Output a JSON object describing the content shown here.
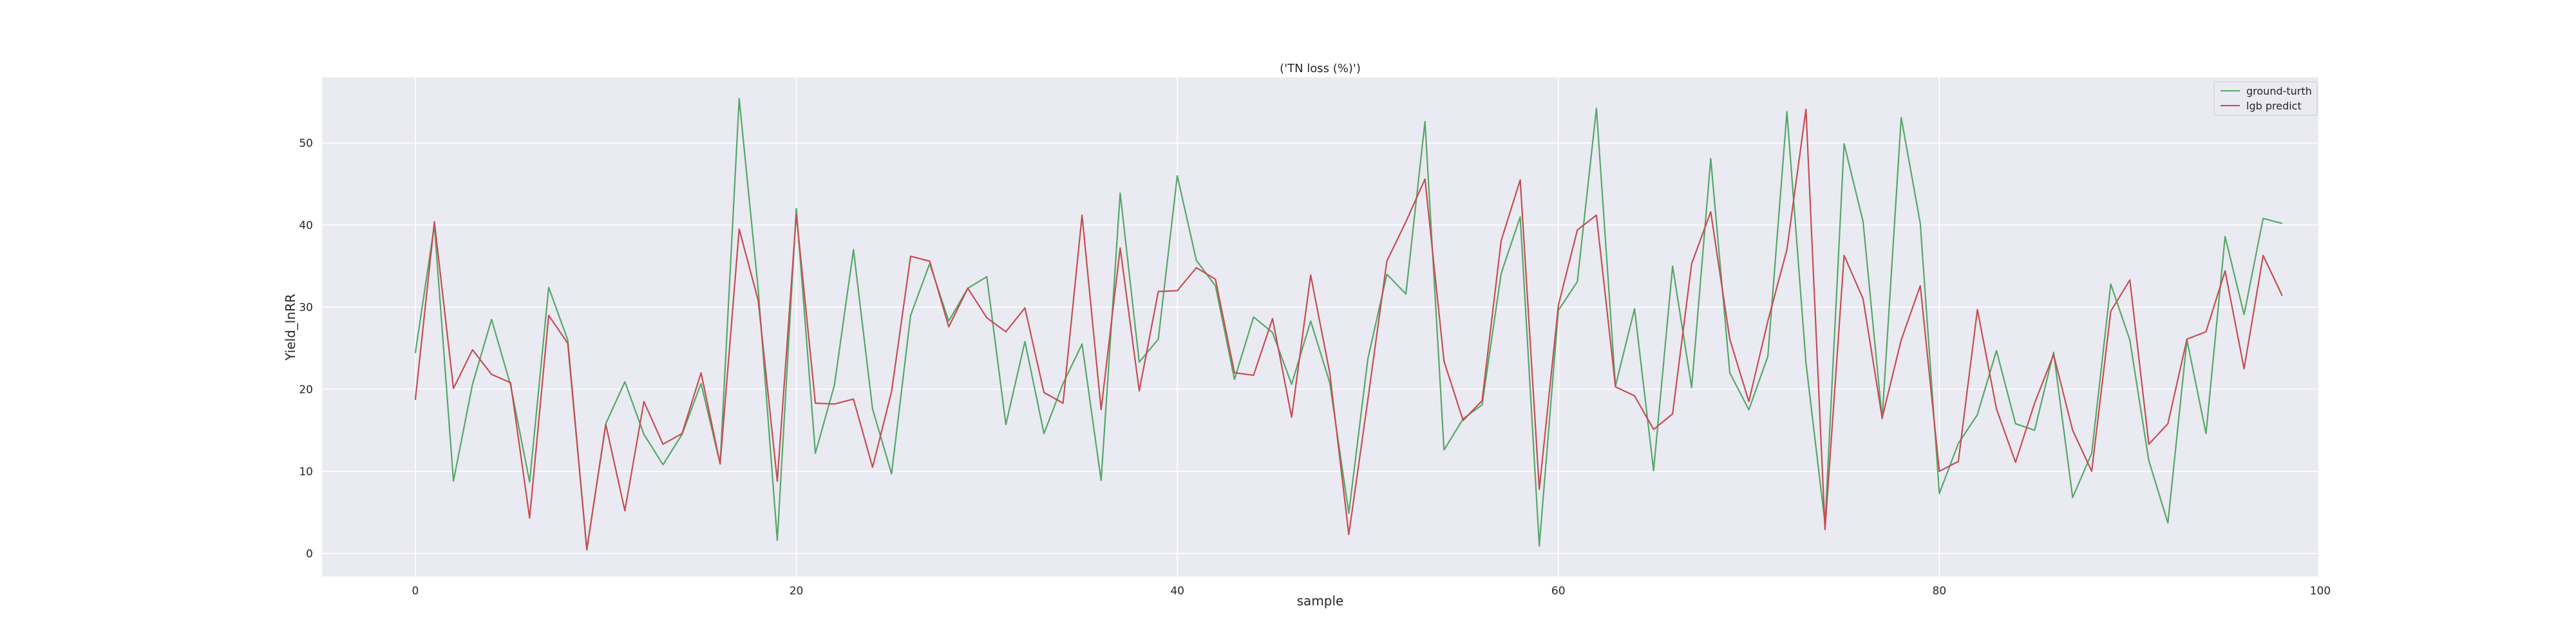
{
  "chart_data": {
    "type": "line",
    "title": "('TN loss (%)')",
    "xlabel": "sample",
    "ylabel": "Yield_lnRR",
    "xlim": [
      -4.9,
      99.9
    ],
    "ylim": [
      -2.8,
      58.0
    ],
    "xticks": [
      0,
      20,
      40,
      60,
      80,
      100
    ],
    "yticks": [
      0,
      10,
      20,
      30,
      40,
      50
    ],
    "grid": true,
    "legend_position": "top-right",
    "x": [
      0,
      1,
      2,
      3,
      4,
      5,
      6,
      7,
      8,
      9,
      10,
      11,
      12,
      13,
      14,
      15,
      16,
      17,
      18,
      19,
      20,
      21,
      22,
      23,
      24,
      25,
      26,
      27,
      28,
      29,
      30,
      31,
      32,
      33,
      34,
      35,
      36,
      37,
      38,
      39,
      40,
      41,
      42,
      43,
      44,
      45,
      46,
      47,
      48,
      49,
      50,
      51,
      52,
      53,
      54,
      55,
      56,
      57,
      58,
      59,
      60,
      61,
      62,
      63,
      64,
      65,
      66,
      67,
      68,
      69,
      70,
      71,
      72,
      73,
      74,
      75,
      76,
      77,
      78,
      79,
      80,
      81,
      82,
      83,
      84,
      85,
      86,
      87,
      88,
      89,
      90,
      91,
      92,
      93,
      94,
      95,
      96,
      97,
      98
    ],
    "series": [
      {
        "name": "ground-turth",
        "color": "#55a868",
        "values": [
          24.4,
          40.0,
          8.8,
          20.6,
          28.5,
          20.5,
          8.7,
          32.4,
          26.0,
          0.4,
          15.8,
          20.9,
          14.5,
          10.8,
          14.5,
          20.7,
          10.9,
          55.4,
          32.1,
          1.6,
          42.0,
          12.2,
          20.5,
          37.0,
          17.6,
          9.7,
          29.0,
          35.3,
          28.3,
          32.3,
          33.7,
          15.7,
          25.8,
          14.6,
          20.7,
          25.5,
          8.9,
          43.9,
          23.3,
          26.1,
          46.0,
          35.7,
          32.6,
          21.2,
          28.8,
          26.9,
          20.6,
          28.3,
          20.8,
          4.9,
          23.7,
          34.0,
          31.6,
          52.6,
          12.6,
          16.4,
          18.1,
          34.1,
          41.0,
          0.9,
          29.6,
          33.1,
          54.2,
          20.4,
          29.8,
          10.1,
          35.0,
          20.2,
          48.1,
          22.0,
          17.5,
          24.0,
          53.8,
          23.2,
          3.6,
          49.9,
          40.4,
          16.4,
          53.1,
          40.2,
          7.3,
          13.4,
          16.9,
          24.7,
          15.8,
          15.0,
          24.5,
          6.8,
          12.2,
          32.8,
          26.0,
          11.3,
          3.7,
          26.0,
          14.6,
          38.6,
          29.1,
          40.8,
          40.2
        ]
      },
      {
        "name": "lgb predict",
        "color": "#c44e52",
        "values": [
          18.7,
          40.4,
          20.1,
          24.8,
          21.8,
          20.8,
          4.3,
          29.0,
          25.6,
          0.5,
          15.7,
          5.2,
          18.5,
          13.3,
          14.6,
          22.0,
          10.9,
          39.5,
          30.8,
          8.8,
          41.3,
          18.3,
          18.2,
          18.8,
          10.5,
          19.7,
          36.2,
          35.6,
          27.6,
          32.3,
          28.7,
          27.0,
          29.9,
          19.6,
          18.3,
          41.2,
          17.5,
          37.2,
          19.8,
          31.9,
          32.0,
          34.8,
          33.4,
          22.0,
          21.7,
          28.6,
          16.6,
          33.9,
          22.0,
          2.3,
          18.7,
          35.6,
          40.4,
          45.6,
          23.4,
          16.2,
          18.6,
          38.1,
          45.5,
          7.8,
          30.2,
          39.4,
          41.2,
          20.3,
          19.2,
          15.1,
          17.0,
          35.3,
          41.6,
          26.1,
          18.5,
          28.3,
          37.0,
          54.1,
          2.9,
          36.3,
          31.0,
          16.5,
          26.0,
          32.6,
          10.0,
          11.2,
          29.7,
          17.6,
          11.1,
          18.3,
          24.2,
          15.0,
          10.0,
          29.5,
          33.3,
          13.3,
          15.8,
          26.1,
          27.0,
          34.4,
          22.5,
          36.3,
          31.4
        ]
      }
    ]
  }
}
